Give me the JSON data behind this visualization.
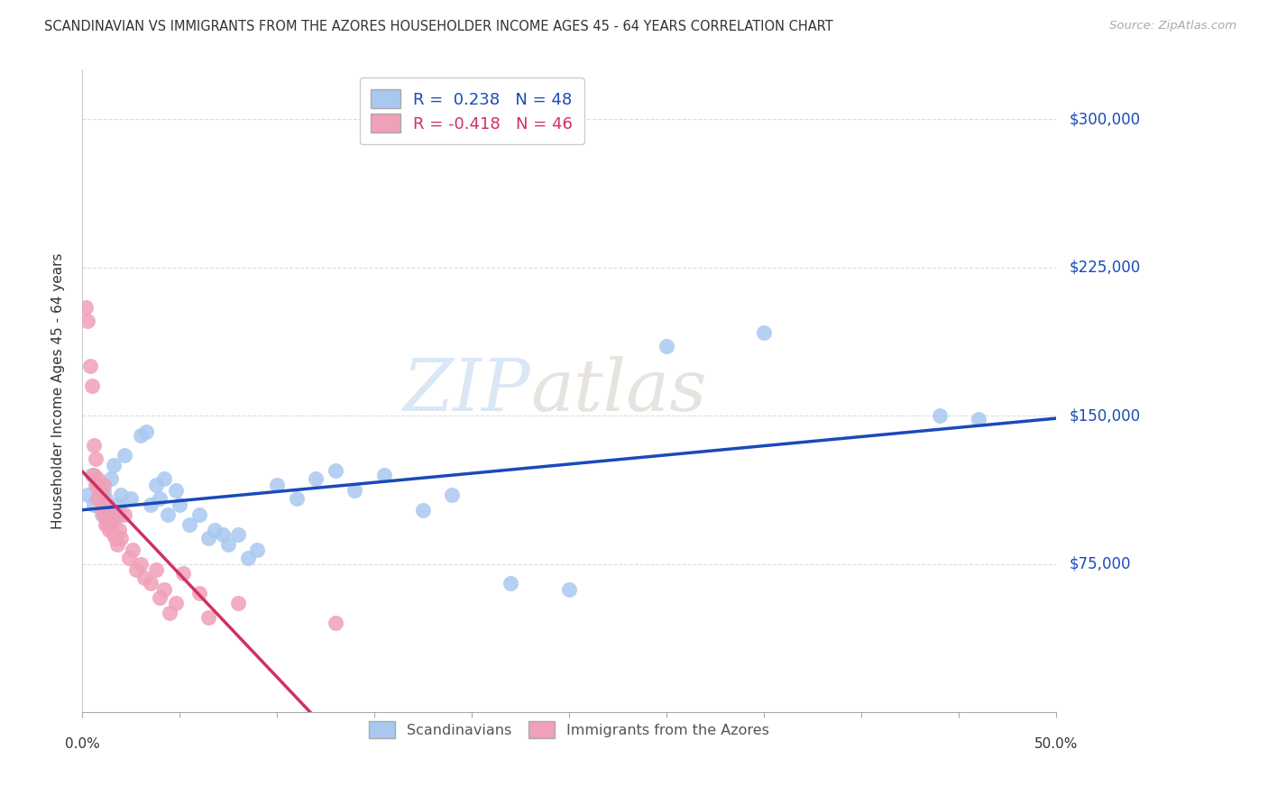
{
  "title": "SCANDINAVIAN VS IMMIGRANTS FROM THE AZORES HOUSEHOLDER INCOME AGES 45 - 64 YEARS CORRELATION CHART",
  "source": "Source: ZipAtlas.com",
  "ylabel": "Householder Income Ages 45 - 64 years",
  "ytick_labels": [
    "$75,000",
    "$150,000",
    "$225,000",
    "$300,000"
  ],
  "ytick_values": [
    75000,
    150000,
    225000,
    300000
  ],
  "ylim": [
    0,
    325000
  ],
  "xlim": [
    0.0,
    0.5
  ],
  "blue_R": 0.238,
  "blue_N": 48,
  "pink_R": -0.418,
  "pink_N": 46,
  "blue_color": "#A8C8F0",
  "pink_color": "#F0A0B8",
  "blue_line_color": "#1A4ABA",
  "pink_line_color": "#D03060",
  "pink_dash_color": "#E8A0B8",
  "legend_blue_label": "Scandinavians",
  "legend_pink_label": "Immigrants from the Azores",
  "watermark_zip": "ZIP",
  "watermark_atlas": "atlas",
  "blue_scatter_x": [
    0.003,
    0.005,
    0.006,
    0.008,
    0.01,
    0.011,
    0.012,
    0.013,
    0.015,
    0.016,
    0.017,
    0.018,
    0.019,
    0.02,
    0.022,
    0.025,
    0.03,
    0.033,
    0.035,
    0.038,
    0.04,
    0.042,
    0.044,
    0.048,
    0.05,
    0.055,
    0.06,
    0.065,
    0.068,
    0.072,
    0.075,
    0.08,
    0.085,
    0.09,
    0.1,
    0.11,
    0.12,
    0.13,
    0.14,
    0.155,
    0.175,
    0.19,
    0.22,
    0.25,
    0.3,
    0.35,
    0.44,
    0.46
  ],
  "blue_scatter_y": [
    110000,
    120000,
    105000,
    115000,
    100000,
    112000,
    108000,
    95000,
    118000,
    125000,
    98000,
    105000,
    100000,
    110000,
    130000,
    108000,
    140000,
    142000,
    105000,
    115000,
    108000,
    118000,
    100000,
    112000,
    105000,
    95000,
    100000,
    88000,
    92000,
    90000,
    85000,
    90000,
    78000,
    82000,
    115000,
    108000,
    118000,
    122000,
    112000,
    120000,
    102000,
    110000,
    65000,
    62000,
    185000,
    192000,
    150000,
    148000
  ],
  "pink_scatter_x": [
    0.002,
    0.003,
    0.004,
    0.005,
    0.006,
    0.006,
    0.007,
    0.007,
    0.008,
    0.008,
    0.009,
    0.01,
    0.01,
    0.011,
    0.011,
    0.012,
    0.012,
    0.013,
    0.013,
    0.014,
    0.014,
    0.015,
    0.015,
    0.016,
    0.016,
    0.017,
    0.018,
    0.019,
    0.02,
    0.022,
    0.024,
    0.026,
    0.028,
    0.03,
    0.032,
    0.035,
    0.038,
    0.04,
    0.042,
    0.045,
    0.048,
    0.052,
    0.06,
    0.065,
    0.08,
    0.13
  ],
  "pink_scatter_y": [
    205000,
    198000,
    175000,
    165000,
    135000,
    120000,
    128000,
    115000,
    118000,
    108000,
    112000,
    102000,
    110000,
    100000,
    115000,
    98000,
    95000,
    105000,
    100000,
    92000,
    95000,
    102000,
    95000,
    90000,
    98000,
    88000,
    85000,
    92000,
    88000,
    100000,
    78000,
    82000,
    72000,
    75000,
    68000,
    65000,
    72000,
    58000,
    62000,
    50000,
    55000,
    70000,
    60000,
    48000,
    55000,
    45000
  ],
  "background_color": "#FFFFFF",
  "grid_color": "#CCCCCC"
}
